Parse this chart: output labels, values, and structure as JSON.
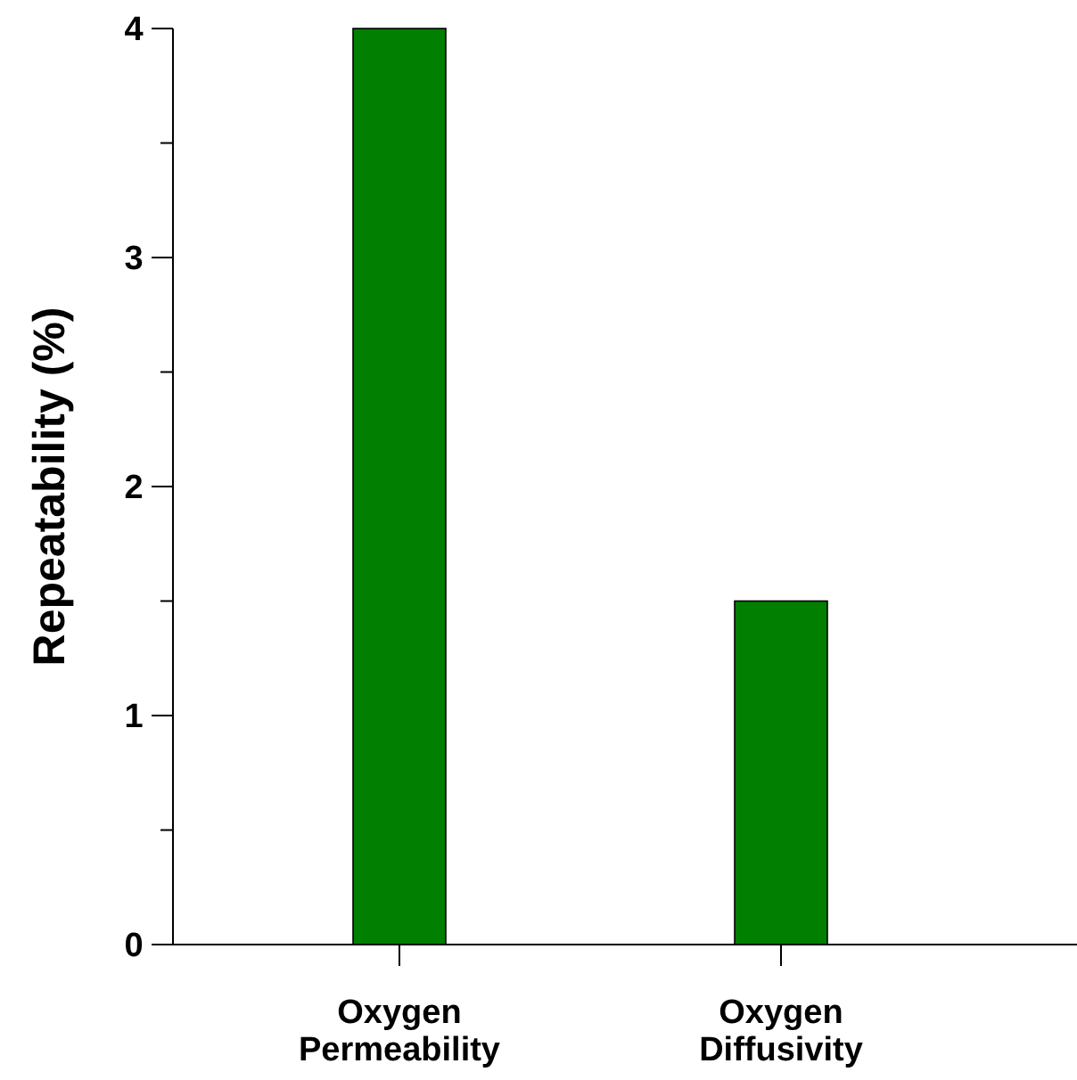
{
  "chart_data": {
    "type": "bar",
    "ylabel": "Repeatability (%)",
    "categories": [
      "Oxygen Permeability",
      "Oxygen Diffusivity"
    ],
    "values": [
      4,
      1.5
    ],
    "color": "#007f00",
    "ylim": [
      0,
      4
    ],
    "yticks": [
      0,
      {
        "value": 0.5,
        "label": null
      },
      1,
      {
        "value": 1.5,
        "label": null
      },
      2,
      {
        "value": 2.5,
        "label": null
      },
      3,
      {
        "value": 3.5,
        "label": null
      },
      4
    ],
    "grid": false
  }
}
